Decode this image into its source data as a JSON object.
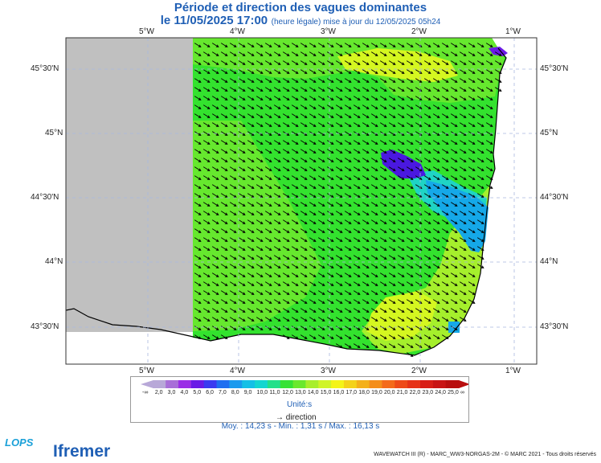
{
  "header": {
    "title": "Période et direction des vagues dominantes",
    "date_line": "le 11/05/2025 17:00",
    "update_line": "(heure légale) mise à jour du 12/05/2025 05h24"
  },
  "map": {
    "lon_ticks": [
      "5°W",
      "4°W",
      "3°W",
      "2°W",
      "1°W"
    ],
    "lat_ticks": [
      "45°30'N",
      "45°N",
      "44°30'N",
      "44°N",
      "43°30'N"
    ],
    "colors": {
      "land": "#ffffff",
      "nodata": "#c0c0c0",
      "sea_12s": "#33e22e",
      "sea_13s": "#66e82e",
      "sea_14s": "#a5ef2c",
      "sea_15s": "#d5f720",
      "sea_11s": "#1fd4c4",
      "sea_9s": "#15a8e8",
      "sea_5s": "#4a18e0",
      "grid": "#a8b8e0"
    }
  },
  "legend": {
    "ticks": [
      "-∞",
      "2,0",
      "3,0",
      "4,0",
      "5,0",
      "6,0",
      "7,0",
      "8,0",
      "9,0",
      "10,0",
      "11,0",
      "12,0",
      "13,0",
      "14,0",
      "15,0",
      "16,0",
      "17,0",
      "18,0",
      "19,0",
      "20,0",
      "21,0",
      "22,0",
      "23,0",
      "24,0",
      "25,0",
      "∞"
    ],
    "colors": [
      "#b8a8d8",
      "#a86ed8",
      "#9a2ee6",
      "#6a1ae6",
      "#3a3af0",
      "#1e6ef0",
      "#1a9aee",
      "#14c0e6",
      "#14d6d0",
      "#22e08a",
      "#36e236",
      "#6ae82e",
      "#a8ee2c",
      "#d0f428",
      "#f4f418",
      "#f4d21a",
      "#f4b01a",
      "#f48e1a",
      "#f46a1a",
      "#ee4a18",
      "#e63216",
      "#d81e16",
      "#c81414",
      "#b80e0e"
    ],
    "units": "Unité:s",
    "direction_label": "direction",
    "arrow_glyph": "→"
  },
  "stats": "Moy. : 14,23 s  -  Min. : 1,31 s / Max. : 16,13 s",
  "footer": "WAVEWATCH III (R) - MARC_WW3-NORGAS-2M - © MARC 2021 - Tous droits réservés",
  "brand": {
    "lops": "LOPS",
    "ifremer": "Ifremer"
  }
}
